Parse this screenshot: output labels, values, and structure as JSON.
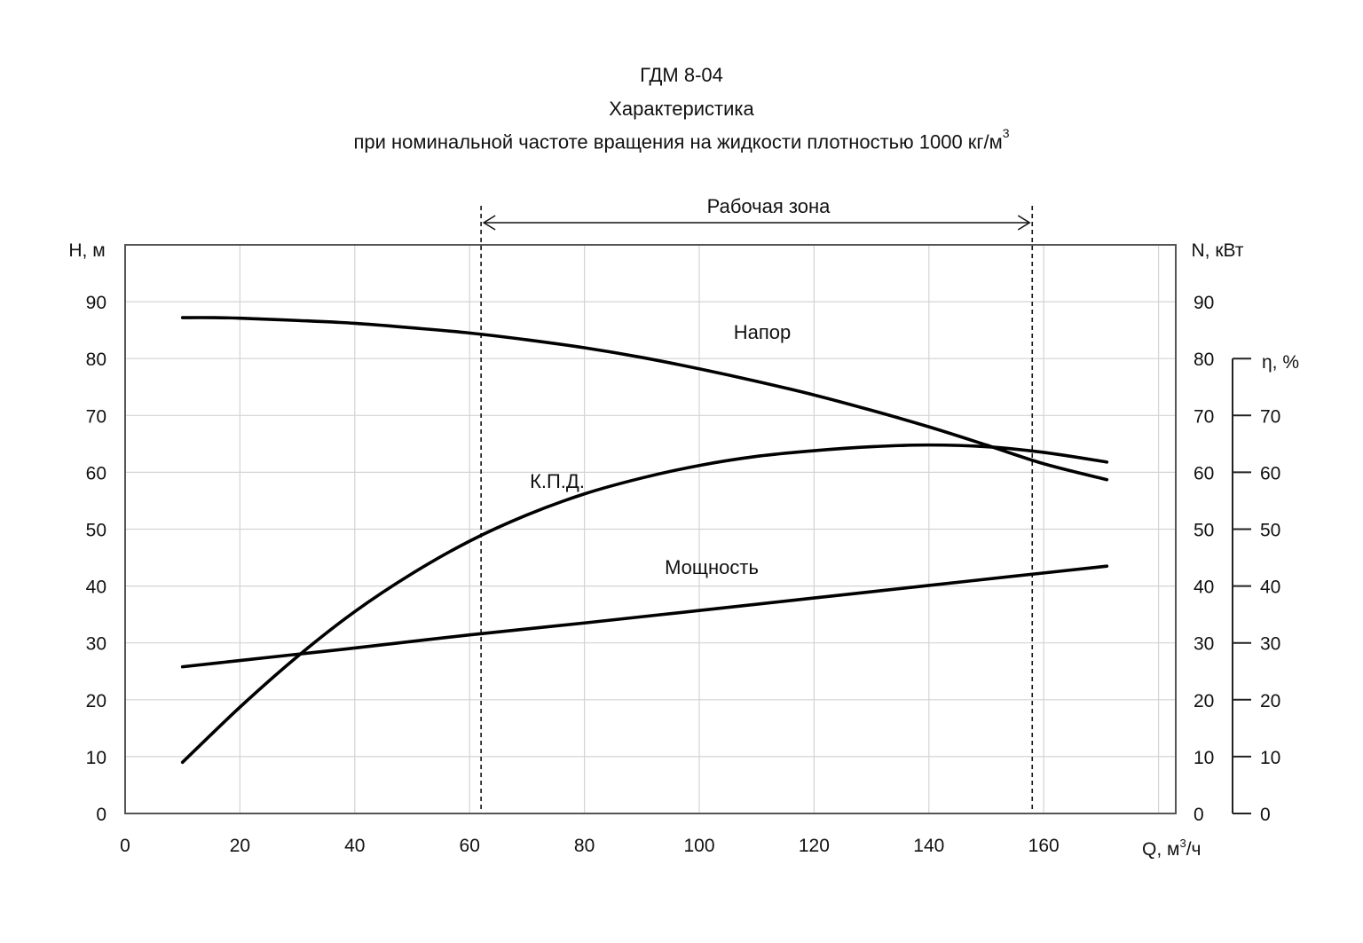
{
  "chart_data": {
    "type": "line",
    "title": "ГДМ 8-04",
    "subtitle": "Характеристика",
    "subtitle2": "при номинальной  частоте  вращения  на жидкости  плотностью  1000  кг/м",
    "subtitle2_sup": "3",
    "xlabel": "Q, м",
    "xlabel_sup": "3",
    "xlabel_suffix": "/ч",
    "ylabel_left": "H, м",
    "ylabel_right": "N, кВт",
    "ylabel_eta": "η, %",
    "xlim": [
      0,
      183
    ],
    "ylim": [
      0,
      100
    ],
    "eta_lim": [
      0,
      80
    ],
    "x_ticks": [
      0,
      20,
      40,
      60,
      80,
      100,
      120,
      140,
      160
    ],
    "y_ticks": [
      0,
      10,
      20,
      30,
      40,
      50,
      60,
      70,
      80,
      90
    ],
    "eta_ticks": [
      0,
      10,
      20,
      30,
      40,
      50,
      60,
      70
    ],
    "grid": true,
    "work_zone": {
      "label": "Рабочая   зона",
      "from": 62,
      "to": 158
    },
    "series": [
      {
        "name": "Напор",
        "x": [
          10,
          15,
          20,
          30,
          40,
          50,
          60,
          70,
          80,
          90,
          100,
          110,
          120,
          130,
          140,
          150,
          160,
          171
        ],
        "y": [
          87.2,
          87.2,
          87.1,
          86.7,
          86.2,
          85.4,
          84.5,
          83.3,
          81.9,
          80.2,
          78.2,
          76.0,
          73.6,
          70.9,
          68.0,
          64.8,
          61.5,
          58.7
        ]
      },
      {
        "name": "К.П.Д.",
        "x": [
          10,
          20,
          30,
          40,
          50,
          60,
          70,
          80,
          90,
          100,
          110,
          120,
          130,
          140,
          150,
          160,
          171
        ],
        "y": [
          9,
          18.7,
          27.6,
          35.5,
          42.2,
          47.9,
          52.5,
          56.2,
          59.0,
          61.2,
          62.8,
          63.8,
          64.5,
          64.8,
          64.5,
          63.5,
          61.8
        ]
      },
      {
        "name": "Мощность",
        "x": [
          10,
          20,
          30,
          40,
          60,
          80,
          100,
          120,
          140,
          160,
          171
        ],
        "y": [
          25.8,
          26.9,
          28.0,
          29.1,
          31.4,
          33.5,
          35.7,
          37.9,
          40.1,
          42.3,
          43.5
        ]
      }
    ]
  }
}
